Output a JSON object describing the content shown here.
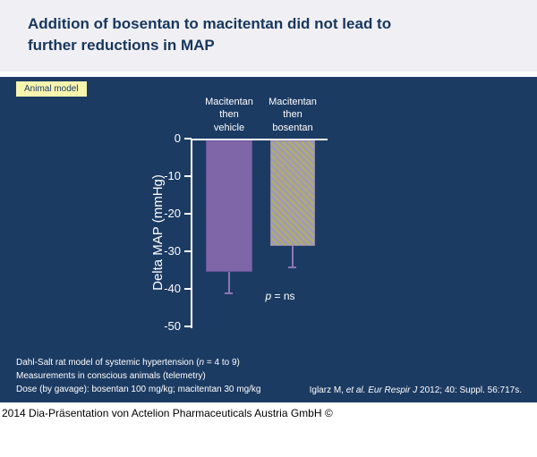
{
  "slide": {
    "title": "Addition of bosentan to macitentan did not lead to\nfurther reductions in MAP",
    "badge_label": "Animal model",
    "footnotes": {
      "line1_pre": "Dahl-Salt rat model of systemic hypertension (",
      "line1_italic": "n",
      "line1_post": " = 4 to 9)",
      "line2": "Measurements in conscious animals (telemetry)",
      "line3": "Dose (by gavage): bosentan 100 mg/kg; macitentan 30 mg/kg"
    },
    "citation": {
      "pre": "Iglarz M, ",
      "italic": "et al. Eur Respir J",
      "post": " 2012; 40: Suppl. 56:717s."
    },
    "footer": "2014 Dia-Präsentation von Actelion Pharmaceuticals Austria GmbH ©"
  },
  "colors": {
    "background_navy": "#1c3b63",
    "header_bg": "#f0f0f4",
    "title_text": "#17365d",
    "badge_bg": "#f8f5ae",
    "bar_solid": "#7e66a9",
    "bar_hatch_base": "#9f9ab6",
    "bar_hatch_stripe": "#b4ae60",
    "error_bar": "#8d76b2",
    "axis": "#ffffff"
  },
  "chart_data": {
    "type": "bar",
    "categories": [
      "Macitentan then vehicle",
      "Macitentan then bosentan"
    ],
    "group_labels": [
      "Macitentan\nthen\nvehicle",
      "Macitentan\nthen\nbosentan"
    ],
    "values": [
      -35,
      -28
    ],
    "error_bars": [
      6,
      6
    ],
    "ylabel": "Delta MAP (mmHg)",
    "ytick_labels": [
      "0",
      "-10",
      "-20",
      "-30",
      "-40",
      "-50"
    ],
    "ylim": [
      -50,
      0
    ],
    "grid": false,
    "legend": "none",
    "annotation": {
      "p": "p",
      "rest": " = ns"
    },
    "bar_styles": [
      "solid-purple",
      "hatched-diagonal"
    ]
  }
}
